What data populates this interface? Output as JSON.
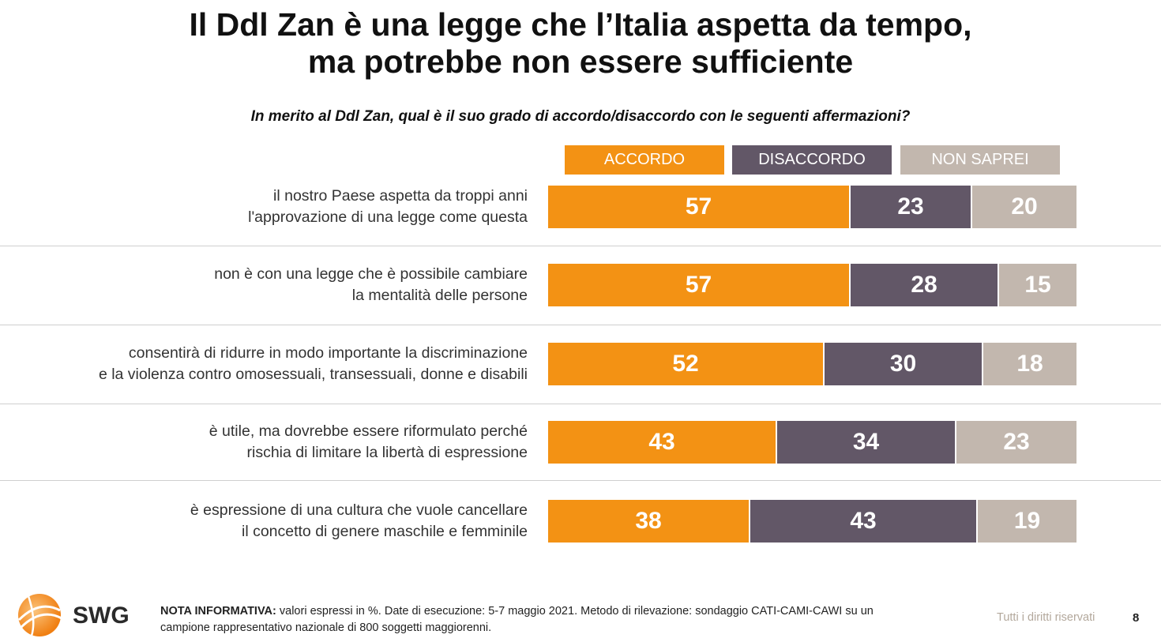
{
  "header": {
    "title_line1": "Il Ddl Zan è una legge che l’Italia aspetta da tempo,",
    "title_line2": "ma potrebbe non essere sufficiente",
    "question": "In merito al Ddl Zan, qual è il suo grado di accordo/disaccordo con le seguenti affermazioni?"
  },
  "colors": {
    "accordo": "#f39214",
    "disaccordo": "#625767",
    "non_saprei": "#c2b7ae"
  },
  "chart_data": {
    "type": "bar",
    "orientation": "horizontal",
    "stacked": true,
    "legend": [
      "ACCORDO",
      "DISACCORDO",
      "NON SAPREI"
    ],
    "legend_position": "top",
    "categories": [
      [
        "il nostro Paese aspetta da troppi anni",
        "l'approvazione di una legge come questa"
      ],
      [
        "non è con una legge che è possibile cambiare",
        "la mentalità delle persone"
      ],
      [
        "consentirà di ridurre in modo importante la discriminazione",
        "e la violenza contro omosessuali, transessuali, donne e disabili"
      ],
      [
        "è utile, ma dovrebbe essere riformulato perché",
        "rischia di limitare la libertà di espressione"
      ],
      [
        "è espressione di una cultura che vuole cancellare",
        "il concetto di genere maschile e femminile"
      ]
    ],
    "series": [
      {
        "name": "ACCORDO",
        "values": [
          57,
          57,
          52,
          43,
          38
        ]
      },
      {
        "name": "DISACCORDO",
        "values": [
          23,
          28,
          30,
          34,
          43
        ]
      },
      {
        "name": "NON SAPREI",
        "values": [
          20,
          15,
          18,
          23,
          19
        ]
      }
    ],
    "xlim": [
      0,
      100
    ],
    "grid": false
  },
  "footer": {
    "logo_text": "SWG",
    "note_bold": "NOTA INFORMATIVA:",
    "note_text": " valori espressi in %. Date di esecuzione: 5-7 maggio 2021. Metodo di rilevazione: sondaggio CATI-CAMI-CAWI su un campione rappresentativo nazionale di 800 soggetti maggiorenni.",
    "rights": "Tutti i diritti riservati",
    "page_number": "8"
  }
}
